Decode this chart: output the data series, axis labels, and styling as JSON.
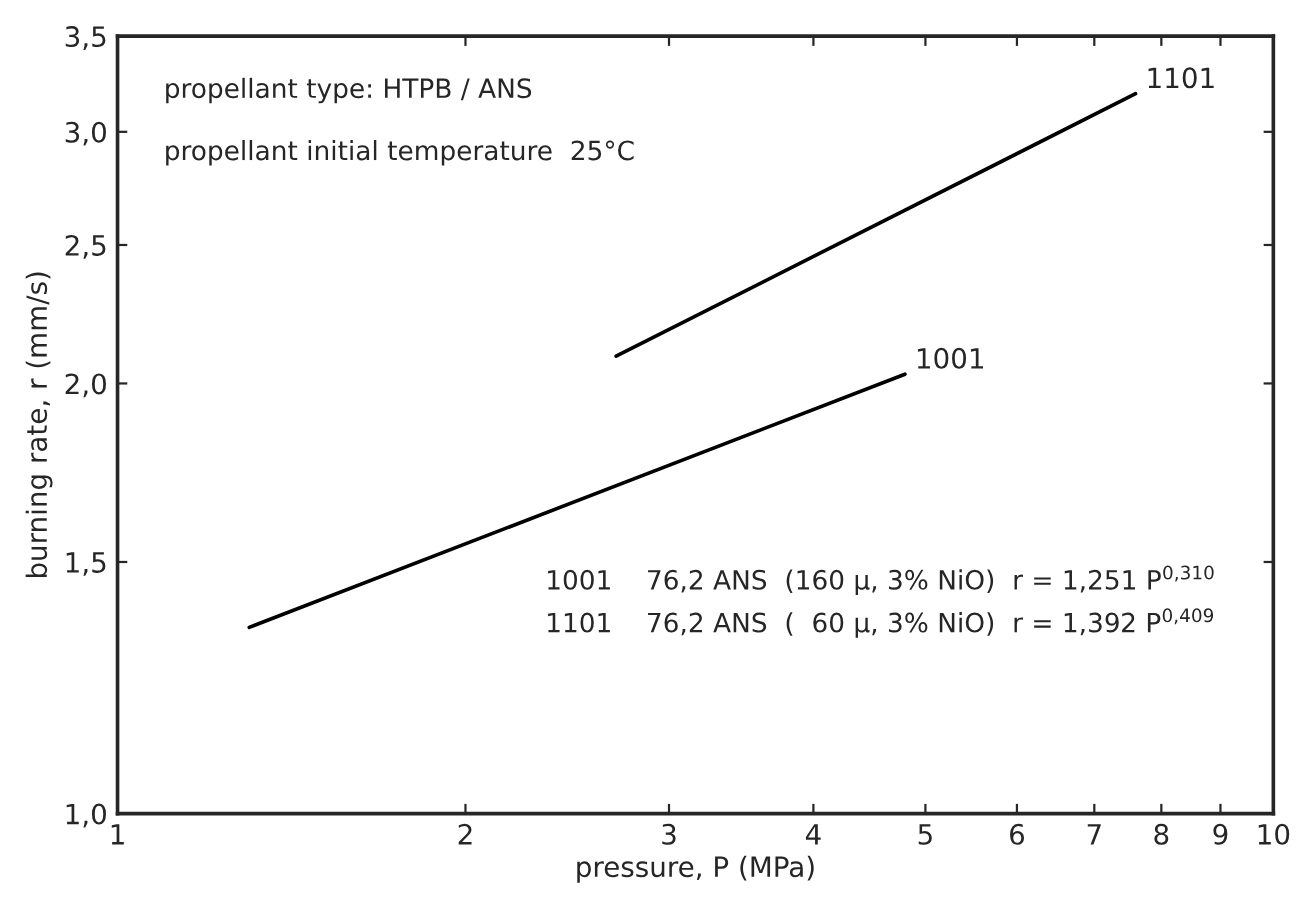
{
  "chart_data": {
    "type": "line",
    "xlabel": "pressure, P (MPa)",
    "ylabel": "burning rate, r (mm/s)",
    "log": "xy",
    "xlim": [
      1,
      10
    ],
    "xticks": [
      1,
      2,
      3,
      4,
      5,
      6,
      7,
      8,
      9,
      10
    ],
    "ylim": [
      1.0,
      3.5
    ],
    "yticks": [
      {
        "value": 1.0,
        "label": "1,0"
      },
      {
        "value": 1.5,
        "label": "1,5"
      },
      {
        "value": 2.0,
        "label": "2,0"
      },
      {
        "value": 2.5,
        "label": "2,5"
      },
      {
        "value": 3.0,
        "label": "3,0"
      },
      {
        "value": 3.5,
        "label": "3,5"
      }
    ],
    "grid": false,
    "legend": false,
    "marker": "none",
    "line_style": "solid",
    "series": [
      {
        "name": "1001",
        "color": "#000000",
        "x": [
          1.3,
          4.8
        ],
        "values": [
          1.35,
          2.03
        ]
      },
      {
        "name": "1101",
        "color": "#000000",
        "x": [
          2.7,
          7.6
        ],
        "values": [
          2.09,
          3.19
        ]
      }
    ],
    "annotations": [
      "propellant type: HTPB / ANS",
      "propellant initial temperature  25°C",
      "1001    76,2 ANS  (160 μ, 3% NiO)  r = 1,251 P$^{0,310}$",
      "1101    76,2 ANS  (  60 μ, 3% NiO)  r = 1,392 P$^{0,409}$"
    ]
  }
}
